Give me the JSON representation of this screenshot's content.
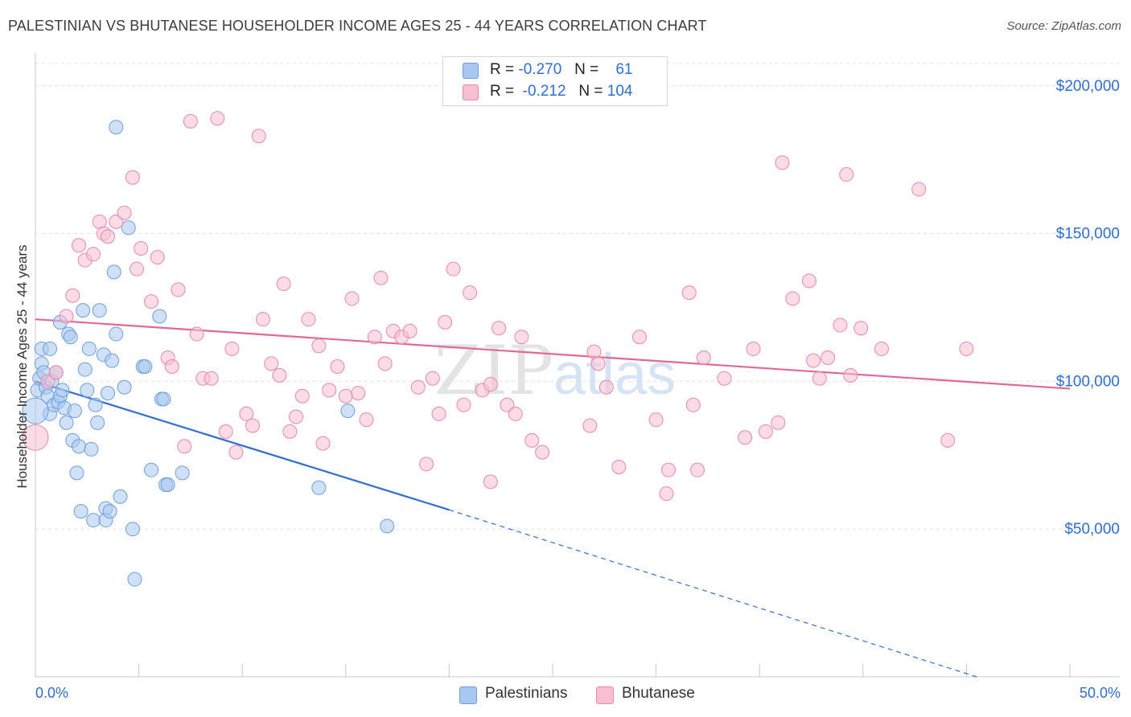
{
  "title": "PALESTINIAN VS BHUTANESE HOUSEHOLDER INCOME AGES 25 - 44 YEARS CORRELATION CHART",
  "source": "Source: ZipAtlas.com",
  "watermark": "ZIPatlas",
  "legend": {
    "r_label": "R =",
    "n_label": "N =",
    "rows": [
      {
        "name": "Palestinians",
        "r": "-0.270",
        "n": "61",
        "color": "#a9c8f0",
        "border": "#6d9fe0"
      },
      {
        "name": "Bhutanese",
        "r": "-0.212",
        "n": "104",
        "color": "#f7bfd2",
        "border": "#e989a9"
      }
    ]
  },
  "chart_data": {
    "type": "scatter",
    "xlabel": "",
    "ylabel": "Householder Income Ages 25 - 44 years",
    "xlim": [
      0,
      50
    ],
    "ylim": [
      0,
      210000
    ],
    "x_tick_labels": [
      "0.0%",
      "50.0%"
    ],
    "y_ticks": [
      50000,
      100000,
      150000,
      200000
    ],
    "y_tick_labels": [
      "$50,000",
      "$100,000",
      "$150,000",
      "$200,000"
    ],
    "series": [
      {
        "name": "Palestinians",
        "color": "#a9c8f0",
        "stroke": "#6d9fe0",
        "trend": {
          "x0": 0,
          "y0": 100000,
          "x1": 20,
          "y1": 56500,
          "dash_x1": 45.5,
          "dash_y1": 0,
          "color": "#2f6fd6"
        },
        "points": [
          [
            0.1,
            97000
          ],
          [
            0.2,
            101000
          ],
          [
            0.3,
            111000
          ],
          [
            0.3,
            106000
          ],
          [
            0.4,
            103000
          ],
          [
            0.5,
            98000
          ],
          [
            0.6,
            95000
          ],
          [
            0.7,
            89000
          ],
          [
            0.7,
            111000
          ],
          [
            0.8,
            100000
          ],
          [
            0.9,
            92000
          ],
          [
            1.0,
            103000
          ],
          [
            1.1,
            93000
          ],
          [
            1.2,
            95000
          ],
          [
            1.2,
            120000
          ],
          [
            1.3,
            97000
          ],
          [
            1.4,
            91000
          ],
          [
            1.5,
            86000
          ],
          [
            1.6,
            116000
          ],
          [
            1.7,
            115000
          ],
          [
            1.8,
            80000
          ],
          [
            1.9,
            90000
          ],
          [
            2.0,
            69000
          ],
          [
            2.1,
            78000
          ],
          [
            2.2,
            56000
          ],
          [
            2.3,
            124000
          ],
          [
            2.4,
            104000
          ],
          [
            2.5,
            97000
          ],
          [
            2.6,
            111000
          ],
          [
            2.7,
            77000
          ],
          [
            2.8,
            53000
          ],
          [
            2.9,
            92000
          ],
          [
            3.0,
            86000
          ],
          [
            3.1,
            124000
          ],
          [
            3.3,
            109000
          ],
          [
            3.4,
            57000
          ],
          [
            3.4,
            53000
          ],
          [
            3.5,
            96000
          ],
          [
            3.6,
            56000
          ],
          [
            3.7,
            107000
          ],
          [
            3.8,
            137000
          ],
          [
            3.9,
            116000
          ],
          [
            3.9,
            186000
          ],
          [
            4.1,
            61000
          ],
          [
            4.3,
            98000
          ],
          [
            4.5,
            152000
          ],
          [
            4.7,
            50000
          ],
          [
            4.8,
            33000
          ],
          [
            5.2,
            105000
          ],
          [
            5.3,
            105000
          ],
          [
            5.6,
            70000
          ],
          [
            6.0,
            122000
          ],
          [
            6.1,
            94000
          ],
          [
            6.2,
            94000
          ],
          [
            6.3,
            65000
          ],
          [
            6.4,
            65000
          ],
          [
            7.1,
            69000
          ],
          [
            13.7,
            64000
          ],
          [
            15.1,
            90000
          ],
          [
            17.0,
            51000
          ],
          [
            0.0,
            90000
          ]
        ]
      },
      {
        "name": "Bhutanese",
        "color": "#f7bfd2",
        "stroke": "#e989a9",
        "trend": {
          "x0": 0,
          "y0": 121000,
          "x1": 50,
          "y1": 97500,
          "color": "#e06996"
        },
        "points": [
          [
            0.0,
            81000
          ],
          [
            0.6,
            100000
          ],
          [
            1.0,
            103000
          ],
          [
            1.5,
            122000
          ],
          [
            1.8,
            129000
          ],
          [
            2.1,
            146000
          ],
          [
            2.4,
            141000
          ],
          [
            2.8,
            143000
          ],
          [
            3.1,
            154000
          ],
          [
            3.3,
            150000
          ],
          [
            3.5,
            149000
          ],
          [
            3.9,
            154000
          ],
          [
            4.3,
            157000
          ],
          [
            4.7,
            169000
          ],
          [
            4.9,
            138000
          ],
          [
            5.1,
            145000
          ],
          [
            5.6,
            127000
          ],
          [
            5.9,
            142000
          ],
          [
            6.4,
            108000
          ],
          [
            6.6,
            105000
          ],
          [
            6.9,
            131000
          ],
          [
            7.2,
            78000
          ],
          [
            7.5,
            188000
          ],
          [
            7.8,
            116000
          ],
          [
            8.1,
            101000
          ],
          [
            8.5,
            101000
          ],
          [
            8.8,
            189000
          ],
          [
            9.2,
            83000
          ],
          [
            9.5,
            111000
          ],
          [
            9.7,
            76000
          ],
          [
            10.2,
            89000
          ],
          [
            10.5,
            85000
          ],
          [
            10.8,
            183000
          ],
          [
            11.0,
            121000
          ],
          [
            11.4,
            106000
          ],
          [
            11.8,
            102000
          ],
          [
            12.0,
            133000
          ],
          [
            12.3,
            83000
          ],
          [
            12.6,
            88000
          ],
          [
            12.9,
            95000
          ],
          [
            13.2,
            121000
          ],
          [
            13.7,
            112000
          ],
          [
            13.9,
            79000
          ],
          [
            14.2,
            97000
          ],
          [
            14.6,
            105000
          ],
          [
            15.0,
            95000
          ],
          [
            15.3,
            128000
          ],
          [
            15.6,
            96000
          ],
          [
            16.0,
            87000
          ],
          [
            16.4,
            115000
          ],
          [
            16.7,
            135000
          ],
          [
            16.9,
            106000
          ],
          [
            17.3,
            117000
          ],
          [
            17.7,
            115000
          ],
          [
            18.1,
            117000
          ],
          [
            18.5,
            98000
          ],
          [
            18.9,
            72000
          ],
          [
            19.2,
            101000
          ],
          [
            19.5,
            89000
          ],
          [
            19.8,
            120000
          ],
          [
            20.2,
            138000
          ],
          [
            20.7,
            92000
          ],
          [
            21.0,
            130000
          ],
          [
            21.6,
            97000
          ],
          [
            22.0,
            99000
          ],
          [
            22.4,
            118000
          ],
          [
            22.8,
            92000
          ],
          [
            23.2,
            89000
          ],
          [
            23.5,
            115000
          ],
          [
            24.0,
            80000
          ],
          [
            24.5,
            76000
          ],
          [
            26.8,
            85000
          ],
          [
            27.0,
            110000
          ],
          [
            27.2,
            106000
          ],
          [
            27.6,
            98000
          ],
          [
            28.2,
            71000
          ],
          [
            29.2,
            115000
          ],
          [
            30.0,
            87000
          ],
          [
            30.6,
            70000
          ],
          [
            31.6,
            130000
          ],
          [
            31.8,
            92000
          ],
          [
            32.0,
            70000
          ],
          [
            32.3,
            108000
          ],
          [
            33.3,
            101000
          ],
          [
            34.3,
            81000
          ],
          [
            34.7,
            111000
          ],
          [
            35.3,
            83000
          ],
          [
            35.9,
            86000
          ],
          [
            36.1,
            174000
          ],
          [
            36.6,
            128000
          ],
          [
            37.4,
            134000
          ],
          [
            37.6,
            107000
          ],
          [
            37.9,
            101000
          ],
          [
            38.3,
            108000
          ],
          [
            38.9,
            119000
          ],
          [
            39.2,
            170000
          ],
          [
            39.4,
            102000
          ],
          [
            39.9,
            118000
          ],
          [
            40.9,
            111000
          ],
          [
            42.7,
            165000
          ],
          [
            44.1,
            80000
          ],
          [
            45.0,
            111000
          ],
          [
            30.5,
            62000
          ],
          [
            22.0,
            66000
          ]
        ]
      }
    ]
  }
}
